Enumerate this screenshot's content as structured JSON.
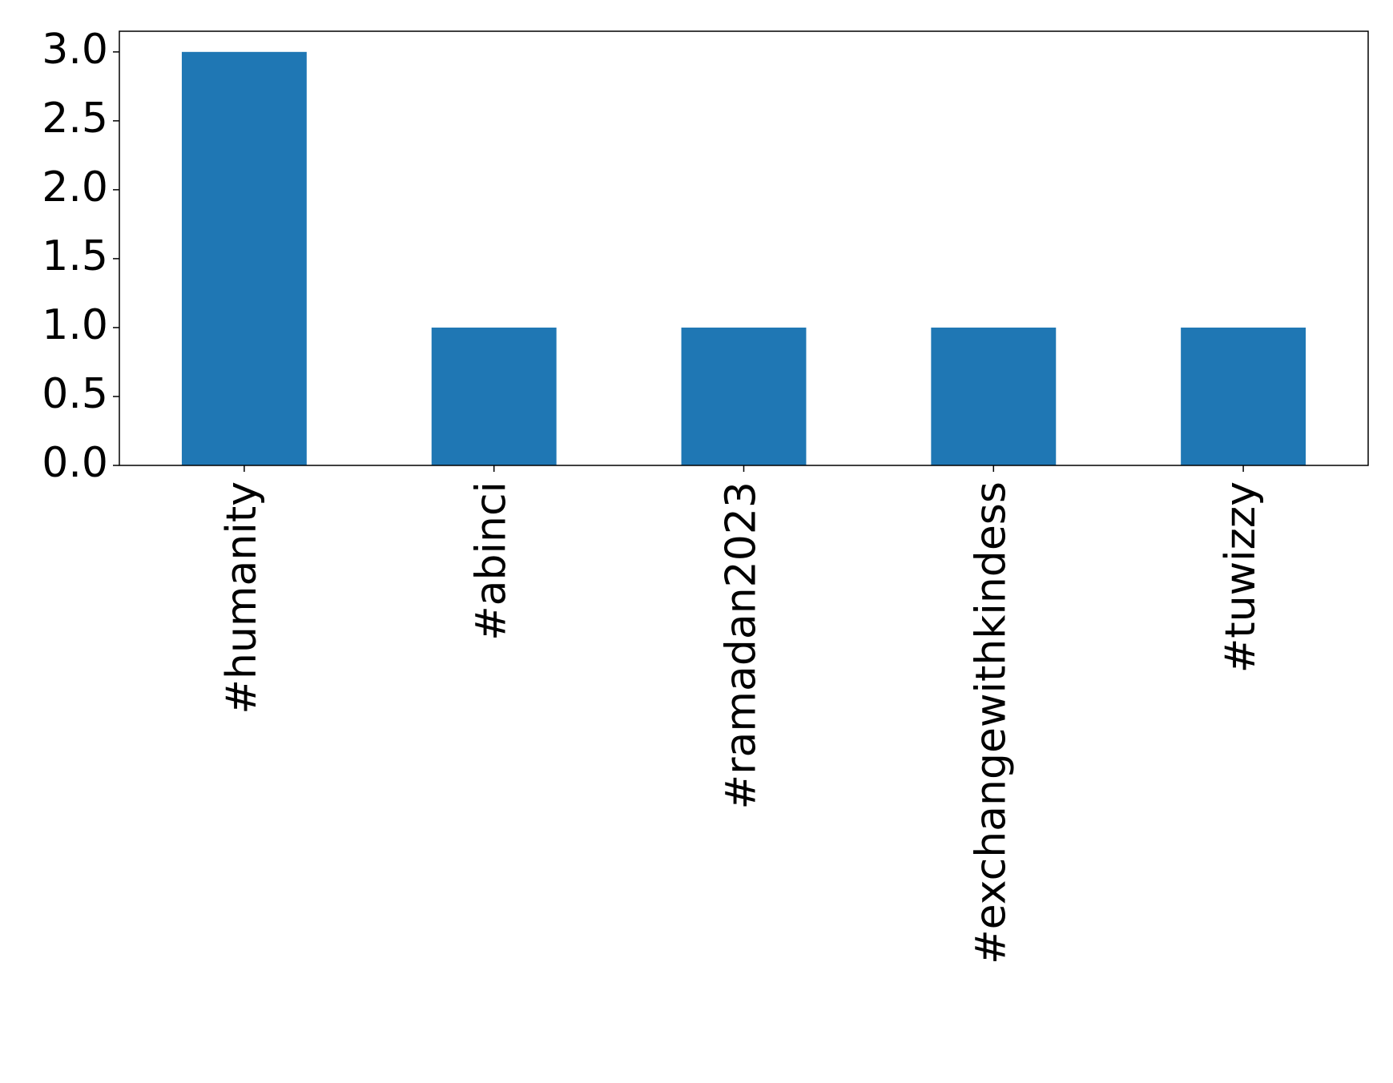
{
  "chart_data": {
    "type": "bar",
    "categories": [
      "#humanity",
      "#abinci",
      "#ramadan2023",
      "#exchangewithkindess",
      "#tuwizzy"
    ],
    "values": [
      3,
      1,
      1,
      1,
      1
    ],
    "color": "#1f77b4",
    "ylim": [
      0,
      3.15
    ],
    "yticks": [
      {
        "value": 0,
        "label": "0.0"
      },
      {
        "value": 0.5,
        "label": "0.5"
      },
      {
        "value": 1,
        "label": "1.0"
      },
      {
        "value": 1.5,
        "label": "1.5"
      },
      {
        "value": 2,
        "label": "2.0"
      },
      {
        "value": 2.5,
        "label": "2.5"
      },
      {
        "value": 3,
        "label": "3.0"
      }
    ],
    "grid": false
  }
}
